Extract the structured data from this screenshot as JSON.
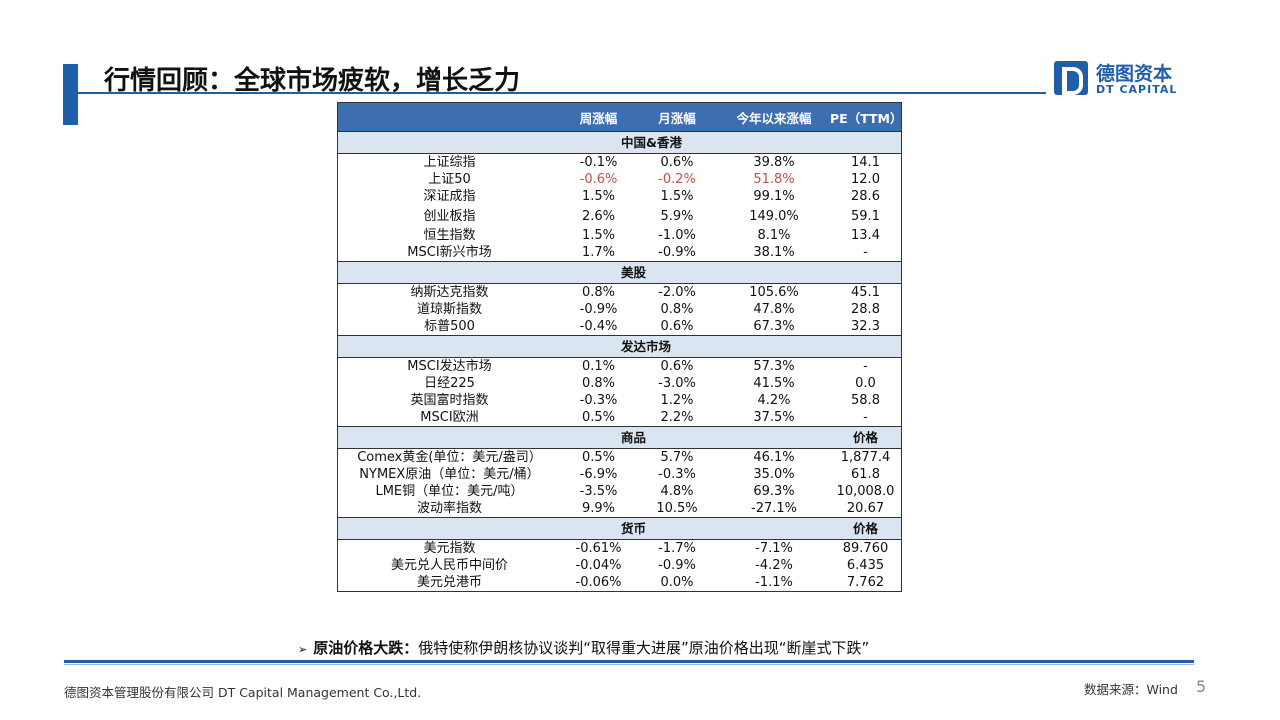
{
  "title": "行情回顾：全球市场疲软，增长乏力",
  "logo": {
    "cn": "德图资本",
    "en": "DT CAPITAL"
  },
  "table": {
    "headers": [
      "",
      "周涨幅",
      "月涨幅",
      "今年以来涨幅",
      "PE（TTM）"
    ],
    "sections": [
      {
        "name": "中国&香港",
        "rows": [
          {
            "name": "上证综指",
            "values": [
              "-0.1%",
              "0.6%",
              "39.8%",
              "14.1"
            ]
          },
          {
            "name": "上证50",
            "values": [
              "-0.6%",
              "-0.2%",
              "51.8%",
              "12.0"
            ],
            "highlight": true
          },
          {
            "name": "深证成指",
            "values": [
              "1.5%",
              "1.5%",
              "99.1%",
              "28.6"
            ]
          },
          {
            "name": "创业板指",
            "values": [
              "2.6%",
              "5.9%",
              "149.0%",
              "59.1"
            ]
          },
          {
            "name": "恒生指数",
            "values": [
              "1.5%",
              "-1.0%",
              "8.1%",
              "13.4"
            ]
          },
          {
            "name": "MSCI新兴市场",
            "values": [
              "1.7%",
              "-0.9%",
              "38.1%",
              "-"
            ]
          }
        ]
      },
      {
        "name": "美股",
        "rows": [
          {
            "name": "纳斯达克指数",
            "values": [
              "0.8%",
              "-2.0%",
              "105.6%",
              "45.1"
            ]
          },
          {
            "name": "道琼斯指数",
            "values": [
              "-0.9%",
              "0.8%",
              "47.8%",
              "28.8"
            ]
          },
          {
            "name": "标普500",
            "values": [
              "-0.4%",
              "0.6%",
              "67.3%",
              "32.3"
            ]
          }
        ]
      },
      {
        "name": "发达市场",
        "rows": [
          {
            "name": "MSCI发达市场",
            "values": [
              "0.1%",
              "0.6%",
              "57.3%",
              "-"
            ]
          },
          {
            "name": "日经225",
            "values": [
              "0.8%",
              "-3.0%",
              "41.5%",
              "0.0"
            ]
          },
          {
            "name": "英国富时指数",
            "values": [
              "-0.3%",
              "1.2%",
              "4.2%",
              "58.8"
            ]
          },
          {
            "name": "MSCI欧洲",
            "values": [
              "0.5%",
              "2.2%",
              "37.5%",
              "-"
            ]
          }
        ]
      },
      {
        "name": "商品",
        "last_label": "价格",
        "rows": [
          {
            "name": "Comex黄金(单位：美元/盎司）",
            "values": [
              "0.5%",
              "5.7%",
              "46.1%",
              "1,877.4"
            ]
          },
          {
            "name": "NYMEX原油（单位：美元/桶）",
            "values": [
              "-6.9%",
              "-0.3%",
              "35.0%",
              "61.8"
            ]
          },
          {
            "name": "LME铜（单位：美元/吨）",
            "values": [
              "-3.5%",
              "4.8%",
              "69.3%",
              "10,008.0"
            ]
          },
          {
            "name": "波动率指数",
            "values": [
              "9.9%",
              "10.5%",
              "-27.1%",
              "20.67"
            ]
          }
        ]
      },
      {
        "name": "货币",
        "last_label": "价格",
        "rows": [
          {
            "name": "美元指数",
            "values": [
              "-0.61%",
              "-1.7%",
              "-7.1%",
              "89.760"
            ]
          },
          {
            "name": "美元兑人民币中间价",
            "values": [
              "-0.04%",
              "-0.9%",
              "-4.2%",
              "6.435"
            ]
          },
          {
            "name": "美元兑港币",
            "values": [
              "-0.06%",
              "0.0%",
              "-1.1%",
              "7.762"
            ]
          }
        ]
      }
    ]
  },
  "bullet": {
    "marker": "➢",
    "bold": "原油价格大跌：",
    "text": "俄特使称伊朗核协议谈判“取得重大进展”原油价格出现“断崖式下跌”"
  },
  "footer": {
    "company": "德图资本管理股份有限公司  DT Capital  Management  Co.,Ltd.",
    "source": "数据来源：Wind",
    "page": "5"
  },
  "colors": {
    "brand": "#1f5fa8",
    "header_bg": "#3d6fb0",
    "section_bg": "#dbe5f1",
    "highlight": "#c0504d"
  }
}
